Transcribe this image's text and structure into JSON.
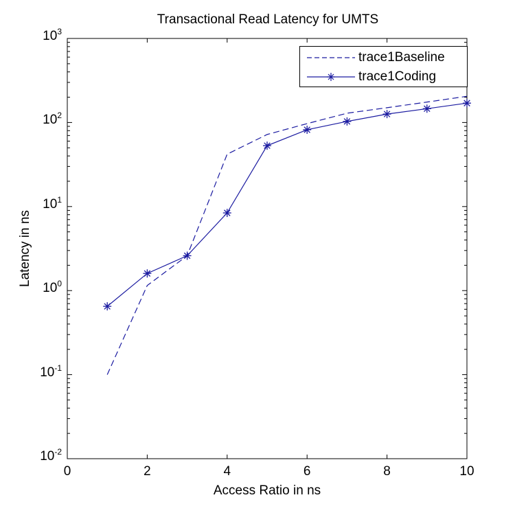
{
  "chart_data": {
    "type": "line",
    "title": "Transactional Read Latency for UMTS",
    "xlabel": "Access Ratio in ns",
    "ylabel": "Latency in ns",
    "xlim": [
      0,
      10
    ],
    "ylim": [
      0.01,
      1000
    ],
    "yscale": "log",
    "grid": false,
    "legend_position": "upper right",
    "xticks": [
      "0",
      "2",
      "4",
      "6",
      "8",
      "10"
    ],
    "yticks": [
      {
        "base": "10",
        "exp": "-2"
      },
      {
        "base": "10",
        "exp": "-1"
      },
      {
        "base": "10",
        "exp": "0"
      },
      {
        "base": "10",
        "exp": "1"
      },
      {
        "base": "10",
        "exp": "2"
      },
      {
        "base": "10",
        "exp": "3"
      }
    ],
    "x": [
      1,
      2,
      3,
      4,
      5,
      6,
      7,
      8,
      9,
      10
    ],
    "series": [
      {
        "name": "trace1Baseline",
        "style": "dashed",
        "marker": "none",
        "color": "#1a1aa0",
        "values": [
          0.1,
          1.15,
          2.6,
          42,
          72,
          97,
          129,
          150,
          175,
          205
        ]
      },
      {
        "name": "trace1Coding",
        "style": "solid",
        "marker": "asterisk",
        "color": "#1a1aa0",
        "values": [
          0.65,
          1.6,
          2.6,
          8.4,
          53,
          82,
          103,
          126,
          146,
          170
        ]
      }
    ]
  }
}
